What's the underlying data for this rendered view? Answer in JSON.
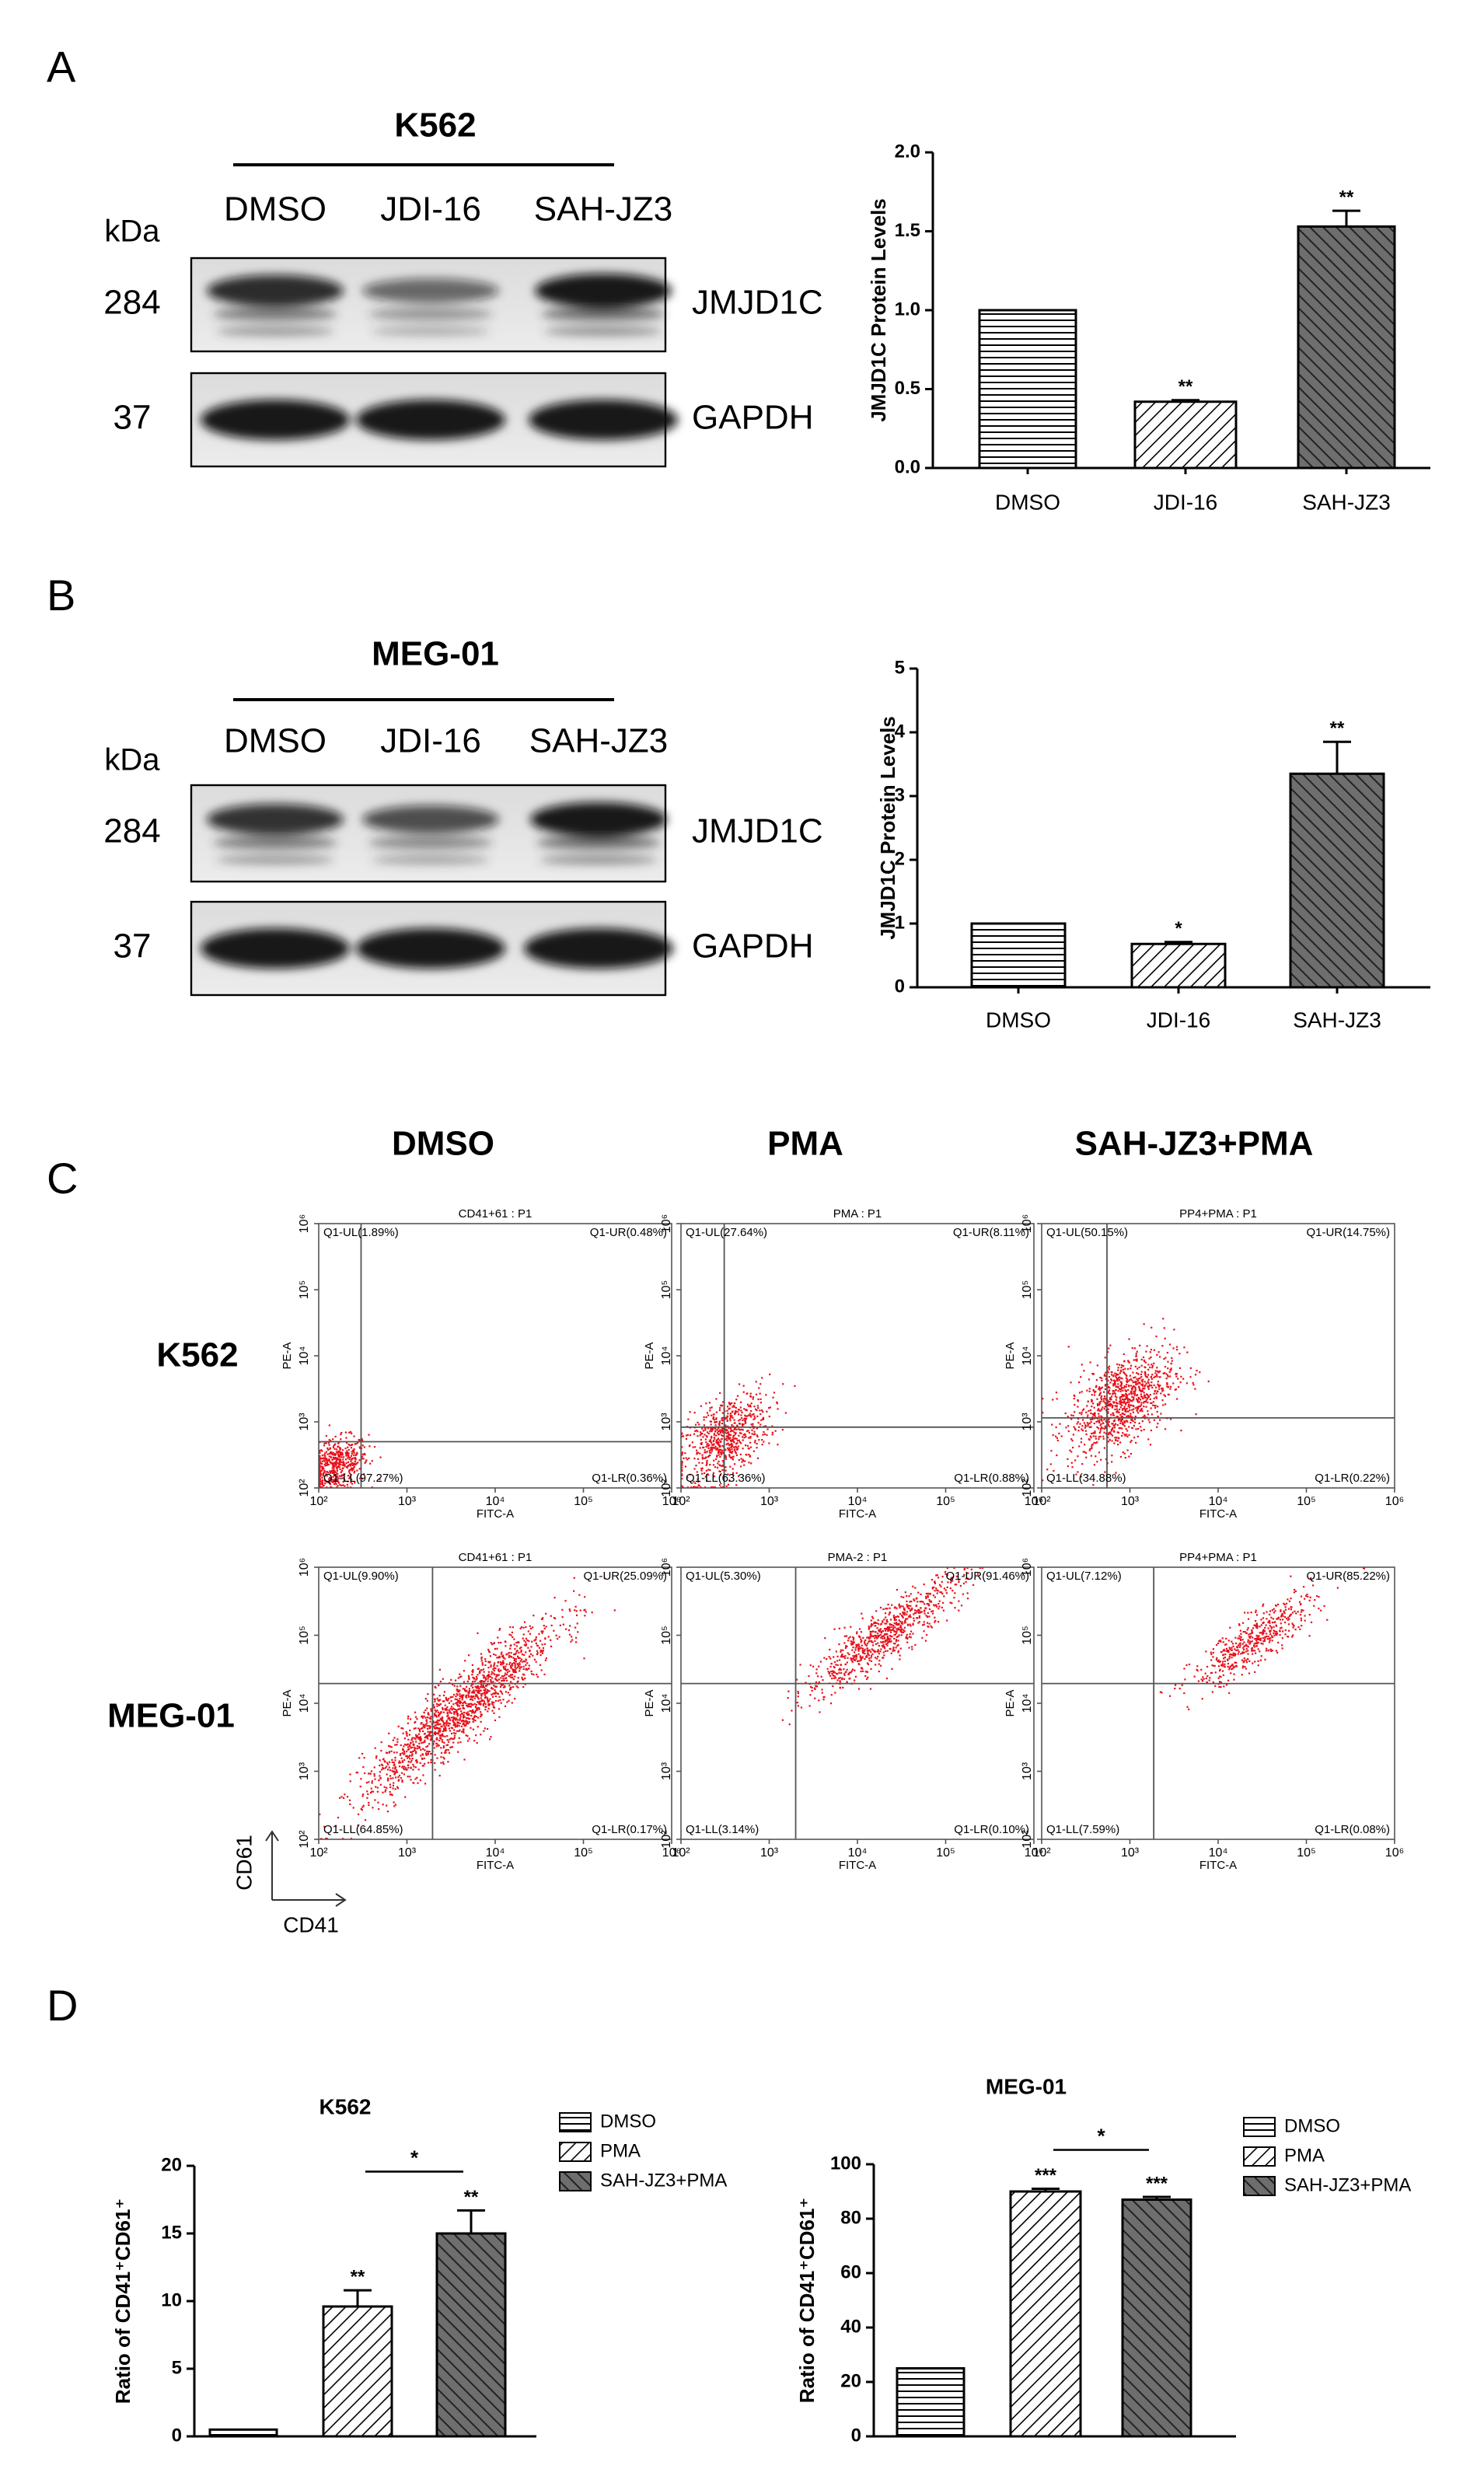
{
  "panel_labels": [
    "A",
    "B",
    "C",
    "D"
  ],
  "blots": [
    {
      "cell_line": "K562",
      "kda_label": "kDa",
      "lanes": [
        "DMSO",
        "JDI-16",
        "SAH-JZ3"
      ],
      "rows": [
        {
          "kda": "284",
          "protein": "JMJD1C"
        },
        {
          "kda": "37",
          "protein": "GAPDH"
        }
      ]
    },
    {
      "cell_line": "MEG-01",
      "kda_label": "kDa",
      "lanes": [
        "DMSO",
        "JDI-16",
        "SAH-JZ3"
      ],
      "rows": [
        {
          "kda": "284",
          "protein": "JMJD1C"
        },
        {
          "kda": "37",
          "protein": "GAPDH"
        }
      ]
    }
  ],
  "flow": {
    "columns": [
      "DMSO",
      "PMA",
      "SAH-JZ3+PMA"
    ],
    "rows": [
      "K562",
      "MEG-01"
    ],
    "x_axis_label": "FITC-A",
    "y_axis_label": "PE-A",
    "xlim": [
      2,
      6
    ],
    "ylim": [
      2,
      6
    ],
    "ticks": [
      {
        "value": 2,
        "label": "10²"
      },
      {
        "value": 3,
        "label": "10³"
      },
      {
        "value": 4,
        "label": "10⁴"
      },
      {
        "value": 5,
        "label": "10⁵"
      },
      {
        "value": 6,
        "label": "10⁶"
      }
    ],
    "marker_y": "CD61",
    "marker_x": "CD41",
    "plots": [
      [
        {
          "title": "CD41+61 : P1",
          "ul": "Q1-UL(1.89%)",
          "ur": "Q1-UR(0.48%)",
          "ll": "Q1-LL(97.27%)",
          "lr": "Q1-LR(0.36%)",
          "gate_x": 2.48,
          "gate_y": 2.7
        },
        {
          "title": "PMA : P1",
          "ul": "Q1-UL(27.64%)",
          "ur": "Q1-UR(8.11%)",
          "ll": "Q1-LL(63.36%)",
          "lr": "Q1-LR(0.88%)",
          "gate_x": 2.49,
          "gate_y": 2.92
        },
        {
          "title": "PP4+PMA : P1",
          "ul": "Q1-UL(50.15%)",
          "ur": "Q1-UR(14.75%)",
          "ll": "Q1-LL(34.88%)",
          "lr": "Q1-LR(0.22%)",
          "gate_x": 2.74,
          "gate_y": 3.06
        }
      ],
      [
        {
          "title": "CD41+61 : P1",
          "ul": "Q1-UL(9.90%)",
          "ur": "Q1-UR(25.09%)",
          "ll": "Q1-LL(64.85%)",
          "lr": "Q1-LR(0.17%)",
          "gate_x": 3.29,
          "gate_y": 4.29
        },
        {
          "title": "PMA-2 : P1",
          "ul": "Q1-UL(5.30%)",
          "ur": "Q1-UR(91.46%)",
          "ll": "Q1-LL(3.14%)",
          "lr": "Q1-LR(0.10%)",
          "gate_x": 3.3,
          "gate_y": 4.29
        },
        {
          "title": "PP4+PMA : P1",
          "ul": "Q1-UL(7.12%)",
          "ur": "Q1-UR(85.22%)",
          "ll": "Q1-LL(7.59%)",
          "lr": "Q1-LR(0.08%)",
          "gate_x": 3.27,
          "gate_y": 4.29
        }
      ]
    ]
  },
  "chart_data": [
    {
      "type": "bar",
      "y_axis_label": "JMJD1C Protein Levels",
      "categories": [
        "DMSO",
        "JDI-16",
        "SAH-JZ3"
      ],
      "values": [
        1.0,
        0.42,
        1.53
      ],
      "errors": [
        0,
        0.01,
        0.1
      ],
      "annotations": [
        null,
        "**",
        "**"
      ],
      "patterns": [
        "horizontal",
        "diagonal-light",
        "diagonal-dark"
      ],
      "ylim": [
        0,
        2
      ],
      "yticks": [
        {
          "value": 0,
          "label": "0.0"
        },
        {
          "value": 0.5,
          "label": "0.5"
        },
        {
          "value": 1,
          "label": "1.0"
        },
        {
          "value": 1.5,
          "label": "1.5"
        },
        {
          "value": 2,
          "label": "2.0"
        }
      ]
    },
    {
      "type": "bar",
      "y_axis_label": "JMJD1C Protein Levels",
      "categories": [
        "DMSO",
        "JDI-16",
        "SAH-JZ3"
      ],
      "values": [
        1.0,
        0.68,
        3.35
      ],
      "errors": [
        0,
        0.03,
        0.5
      ],
      "annotations": [
        null,
        "*",
        "**"
      ],
      "patterns": [
        "horizontal",
        "diagonal-light",
        "diagonal-dark"
      ],
      "ylim": [
        0,
        5
      ],
      "yticks": [
        0,
        1,
        2,
        3,
        4,
        5
      ]
    },
    {
      "type": "bar",
      "title": "K562",
      "y_axis_label": "Ratio of CD41⁺CD61⁺",
      "series": [
        {
          "name": "DMSO",
          "pattern": "horizontal",
          "values": [
            0.5
          ],
          "errors": [
            0
          ],
          "annotations": [
            null
          ]
        },
        {
          "name": "PMA",
          "pattern": "diagonal-light",
          "values": [
            9.6
          ],
          "errors": [
            1.2
          ],
          "annotations": [
            "**"
          ]
        },
        {
          "name": "SAH-JZ3+PMA",
          "pattern": "diagonal-dark",
          "values": [
            15.0
          ],
          "errors": [
            1.7
          ],
          "annotations": [
            "**"
          ]
        }
      ],
      "bracket_label": "*",
      "ylim": [
        0,
        20
      ],
      "yticks": [
        0,
        5,
        10,
        15,
        20
      ]
    },
    {
      "type": "bar",
      "title": "MEG-01",
      "y_axis_label": "Ratio of CD41⁺CD61⁺",
      "series": [
        {
          "name": "DMSO",
          "pattern": "horizontal",
          "values": [
            25
          ],
          "errors": [
            0
          ],
          "annotations": [
            null
          ]
        },
        {
          "name": "PMA",
          "pattern": "diagonal-light",
          "values": [
            90
          ],
          "errors": [
            1
          ],
          "annotations": [
            "***"
          ]
        },
        {
          "name": "SAH-JZ3+PMA",
          "pattern": "diagonal-dark",
          "values": [
            87
          ],
          "errors": [
            1
          ],
          "annotations": [
            "***"
          ]
        }
      ],
      "bracket_label": "*",
      "ylim": [
        0,
        100
      ],
      "yticks": [
        0,
        20,
        40,
        60,
        80,
        100
      ]
    }
  ]
}
